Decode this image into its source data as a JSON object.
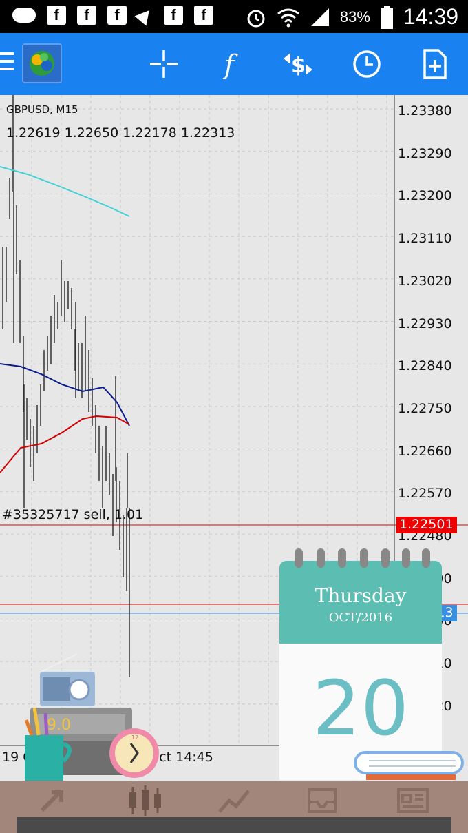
{
  "status_bar": {
    "notif_icons": [
      "message-icon",
      "facebook-icon",
      "facebook-icon",
      "facebook-icon",
      "navigation-icon",
      "facebook-icon",
      "facebook-icon"
    ],
    "battery": "83%",
    "time": "14:39"
  },
  "toolbar": {
    "buttons": [
      "crosshair-icon",
      "indicators-icon",
      "trade-icon",
      "period-icon",
      "new-order-icon"
    ]
  },
  "chart": {
    "symbol": "GBPUSD, M15",
    "ohlc": "1.22619 1.22650 1.22178 1.22313",
    "order_label": "#35325717 sell, 1.01",
    "price_labels": [
      "1.23380",
      "1.23290",
      "1.23200",
      "1.23110",
      "1.23020",
      "1.22930",
      "1.22840",
      "1.22750",
      "1.22660",
      "1.22570",
      "1.22480",
      "1.22390",
      "1.22300",
      "1.22210",
      "1.22120"
    ],
    "sell_price_tag": "1.22501",
    "current_price_tag": "1.22313",
    "date_labels": [
      "19 Oct 14:45",
      "20 Oct 14:45"
    ],
    "colors": {
      "sell_line": "#e00000",
      "bid_line": "#3a8fe0",
      "ma_cyan": "#3fd2d6",
      "ma_blue": "#0a1b8f",
      "ma_red": "#d40000"
    }
  },
  "calendar": {
    "day": "Thursday",
    "month": "OCT/2016",
    "date": "20"
  },
  "bottom_nav": {
    "items": [
      "quotes-icon",
      "chart-icon",
      "trade-icon",
      "history-icon",
      "news-icon"
    ]
  },
  "decor": {
    "pencil_cup_label": "9.0"
  }
}
